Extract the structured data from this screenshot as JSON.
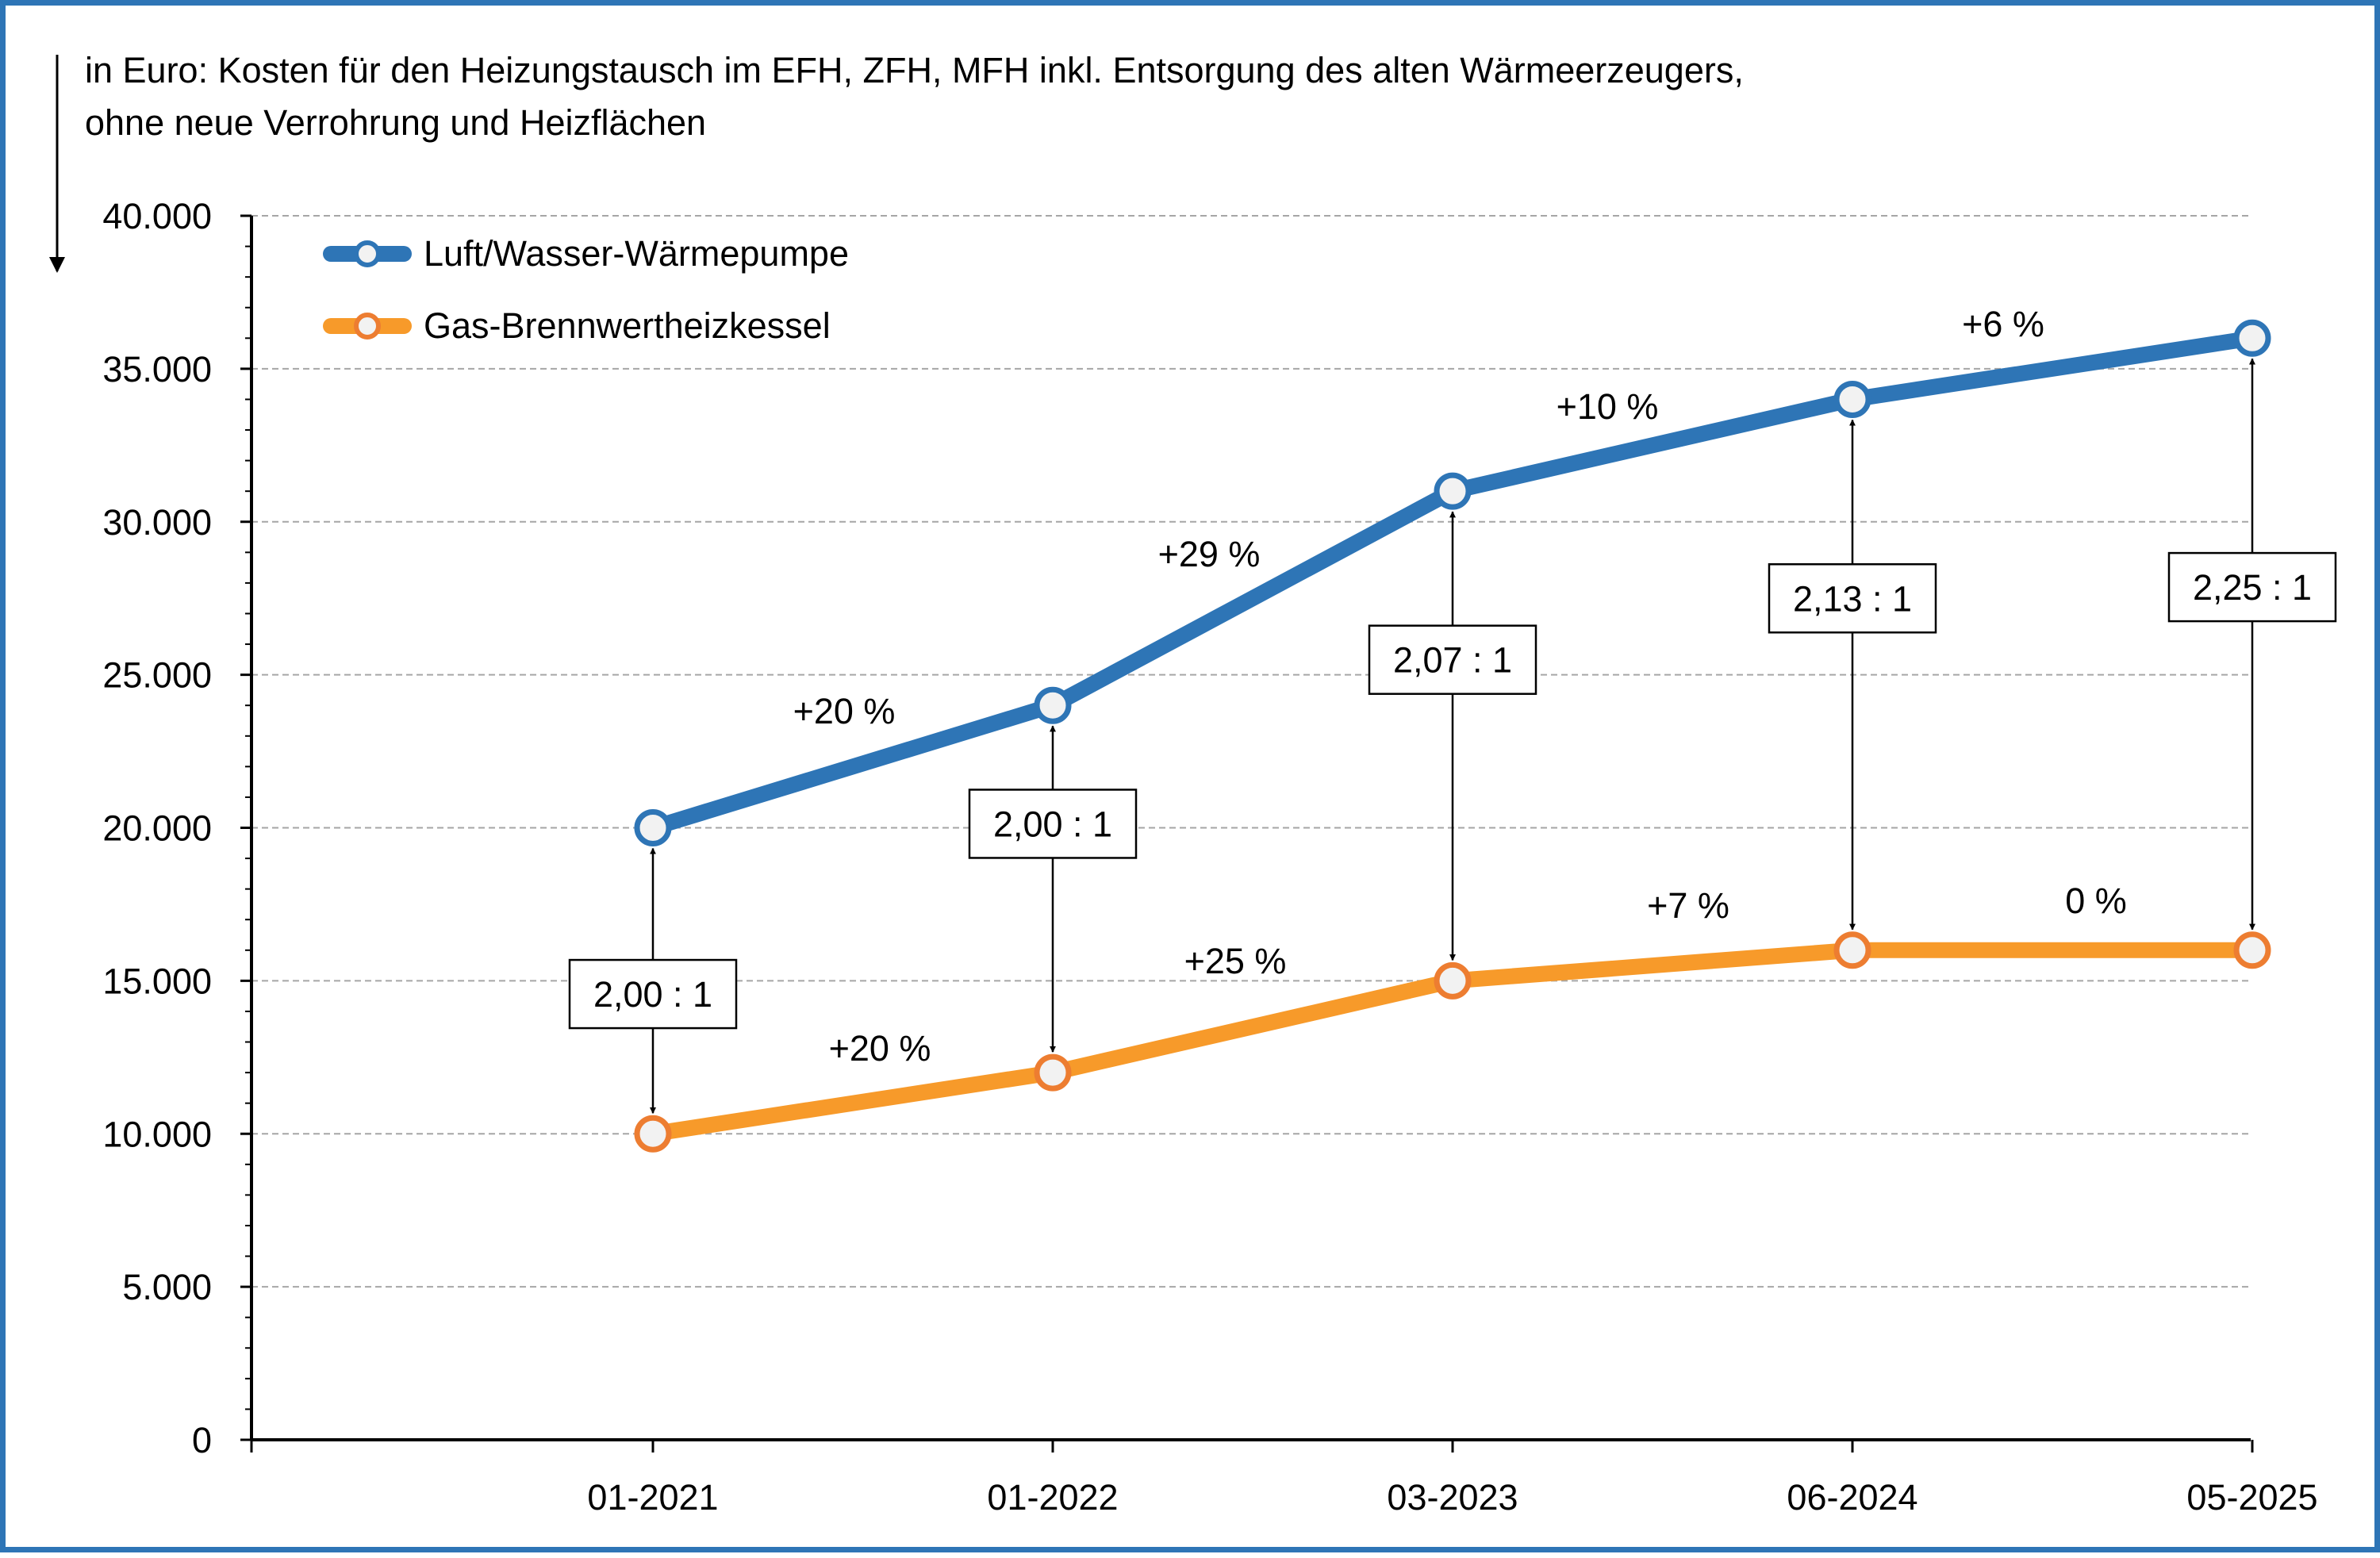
{
  "chart_data": {
    "type": "line",
    "title": "in Euro: Kosten für den Heizungstausch im EFH, ZFH, MFH inkl. Entsorgung des alten Wärmeerzeugers,",
    "subtitle": "ohne neue Verrohrung und Heizflächen",
    "categories": [
      "01-2021",
      "01-2022",
      "03-2023",
      "06-2024",
      "05-2025"
    ],
    "ylim": [
      0,
      40000
    ],
    "yticks": [
      0,
      5000,
      10000,
      15000,
      20000,
      25000,
      30000,
      35000,
      40000
    ],
    "ytick_labels": [
      "0",
      "5.000",
      "10.000",
      "15.000",
      "20.000",
      "25.000",
      "30.000",
      "35.000",
      "40.000"
    ],
    "grid": "horizontal dashed",
    "legend_position": "top-left",
    "series": [
      {
        "name": "Luft/Wasser-Wärmepumpe",
        "color": "#2e75b6",
        "values": [
          20000,
          24000,
          31000,
          34000,
          36000
        ],
        "change_labels": [
          "+20 %",
          "+29 %",
          "+10 %",
          "+6 %"
        ]
      },
      {
        "name": "Gas-Brennwertheizkessel",
        "color": "#f79a2a",
        "marker_edge_color": "#ed7d31",
        "values": [
          10000,
          12000,
          15000,
          16000,
          16000
        ],
        "change_labels": [
          "+20 %",
          "+25 %",
          "+7 %",
          "0 %"
        ]
      }
    ],
    "ratio_labels": [
      "2,00 : 1",
      "2,00 : 1",
      "2,07 : 1",
      "2,13 : 1",
      "2,25 : 1"
    ]
  }
}
